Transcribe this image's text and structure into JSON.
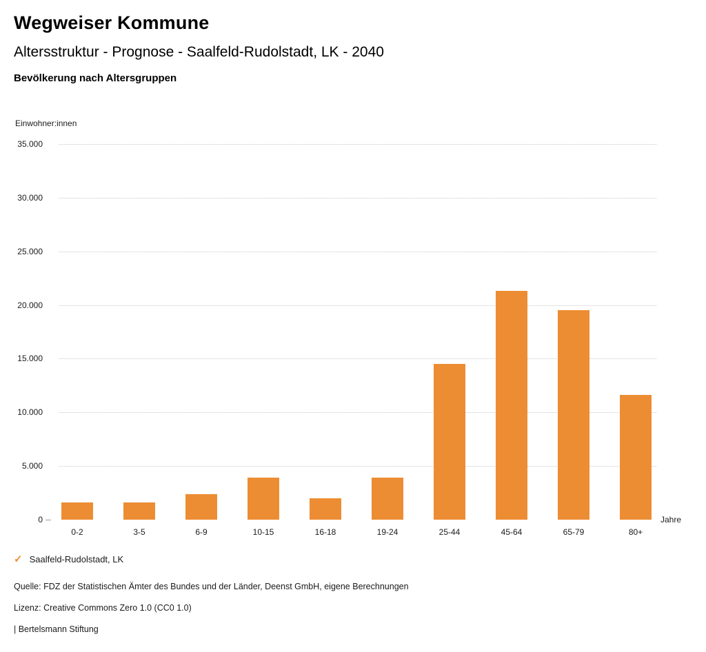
{
  "header": {
    "title": "Wegweiser Kommune",
    "subtitle": "Altersstruktur - Prognose - Saalfeld-Rudolstadt, LK - 2040",
    "chart_heading": "Bevölkerung nach Altersgruppen"
  },
  "chart_data": {
    "type": "bar",
    "title": "Bevölkerung nach Altersgruppen",
    "ylabel": "Einwohner:innen",
    "xlabel": "Jahre",
    "categories": [
      "0-2",
      "3-5",
      "6-9",
      "10-15",
      "16-18",
      "19-24",
      "25-44",
      "45-64",
      "65-79",
      "80+"
    ],
    "values": [
      1600,
      1600,
      2400,
      3900,
      2000,
      3900,
      14500,
      21300,
      19500,
      11600
    ],
    "series_name": "Saalfeld-Rudolstadt, LK",
    "ylim": [
      0,
      35000
    ],
    "ytick_interval": 5000,
    "ytick_labels": [
      "0",
      "5.000",
      "10.000",
      "15.000",
      "20.000",
      "25.000",
      "30.000",
      "35.000"
    ],
    "grid": "horizontal-dotted",
    "legend_position": "bottom-left",
    "bar_color": "#ED8D33"
  },
  "legend": {
    "check_glyph": "✓",
    "label": "Saalfeld-Rudolstadt, LK",
    "color": "#ED8D33"
  },
  "footer": {
    "source": "Quelle: FDZ der Statistischen Ämter des Bundes und der Länder, Deenst GmbH, eigene Berechnungen",
    "license": "Lizenz: Creative Commons Zero 1.0 (CC0 1.0)",
    "attribution": "| Bertelsmann Stiftung"
  }
}
